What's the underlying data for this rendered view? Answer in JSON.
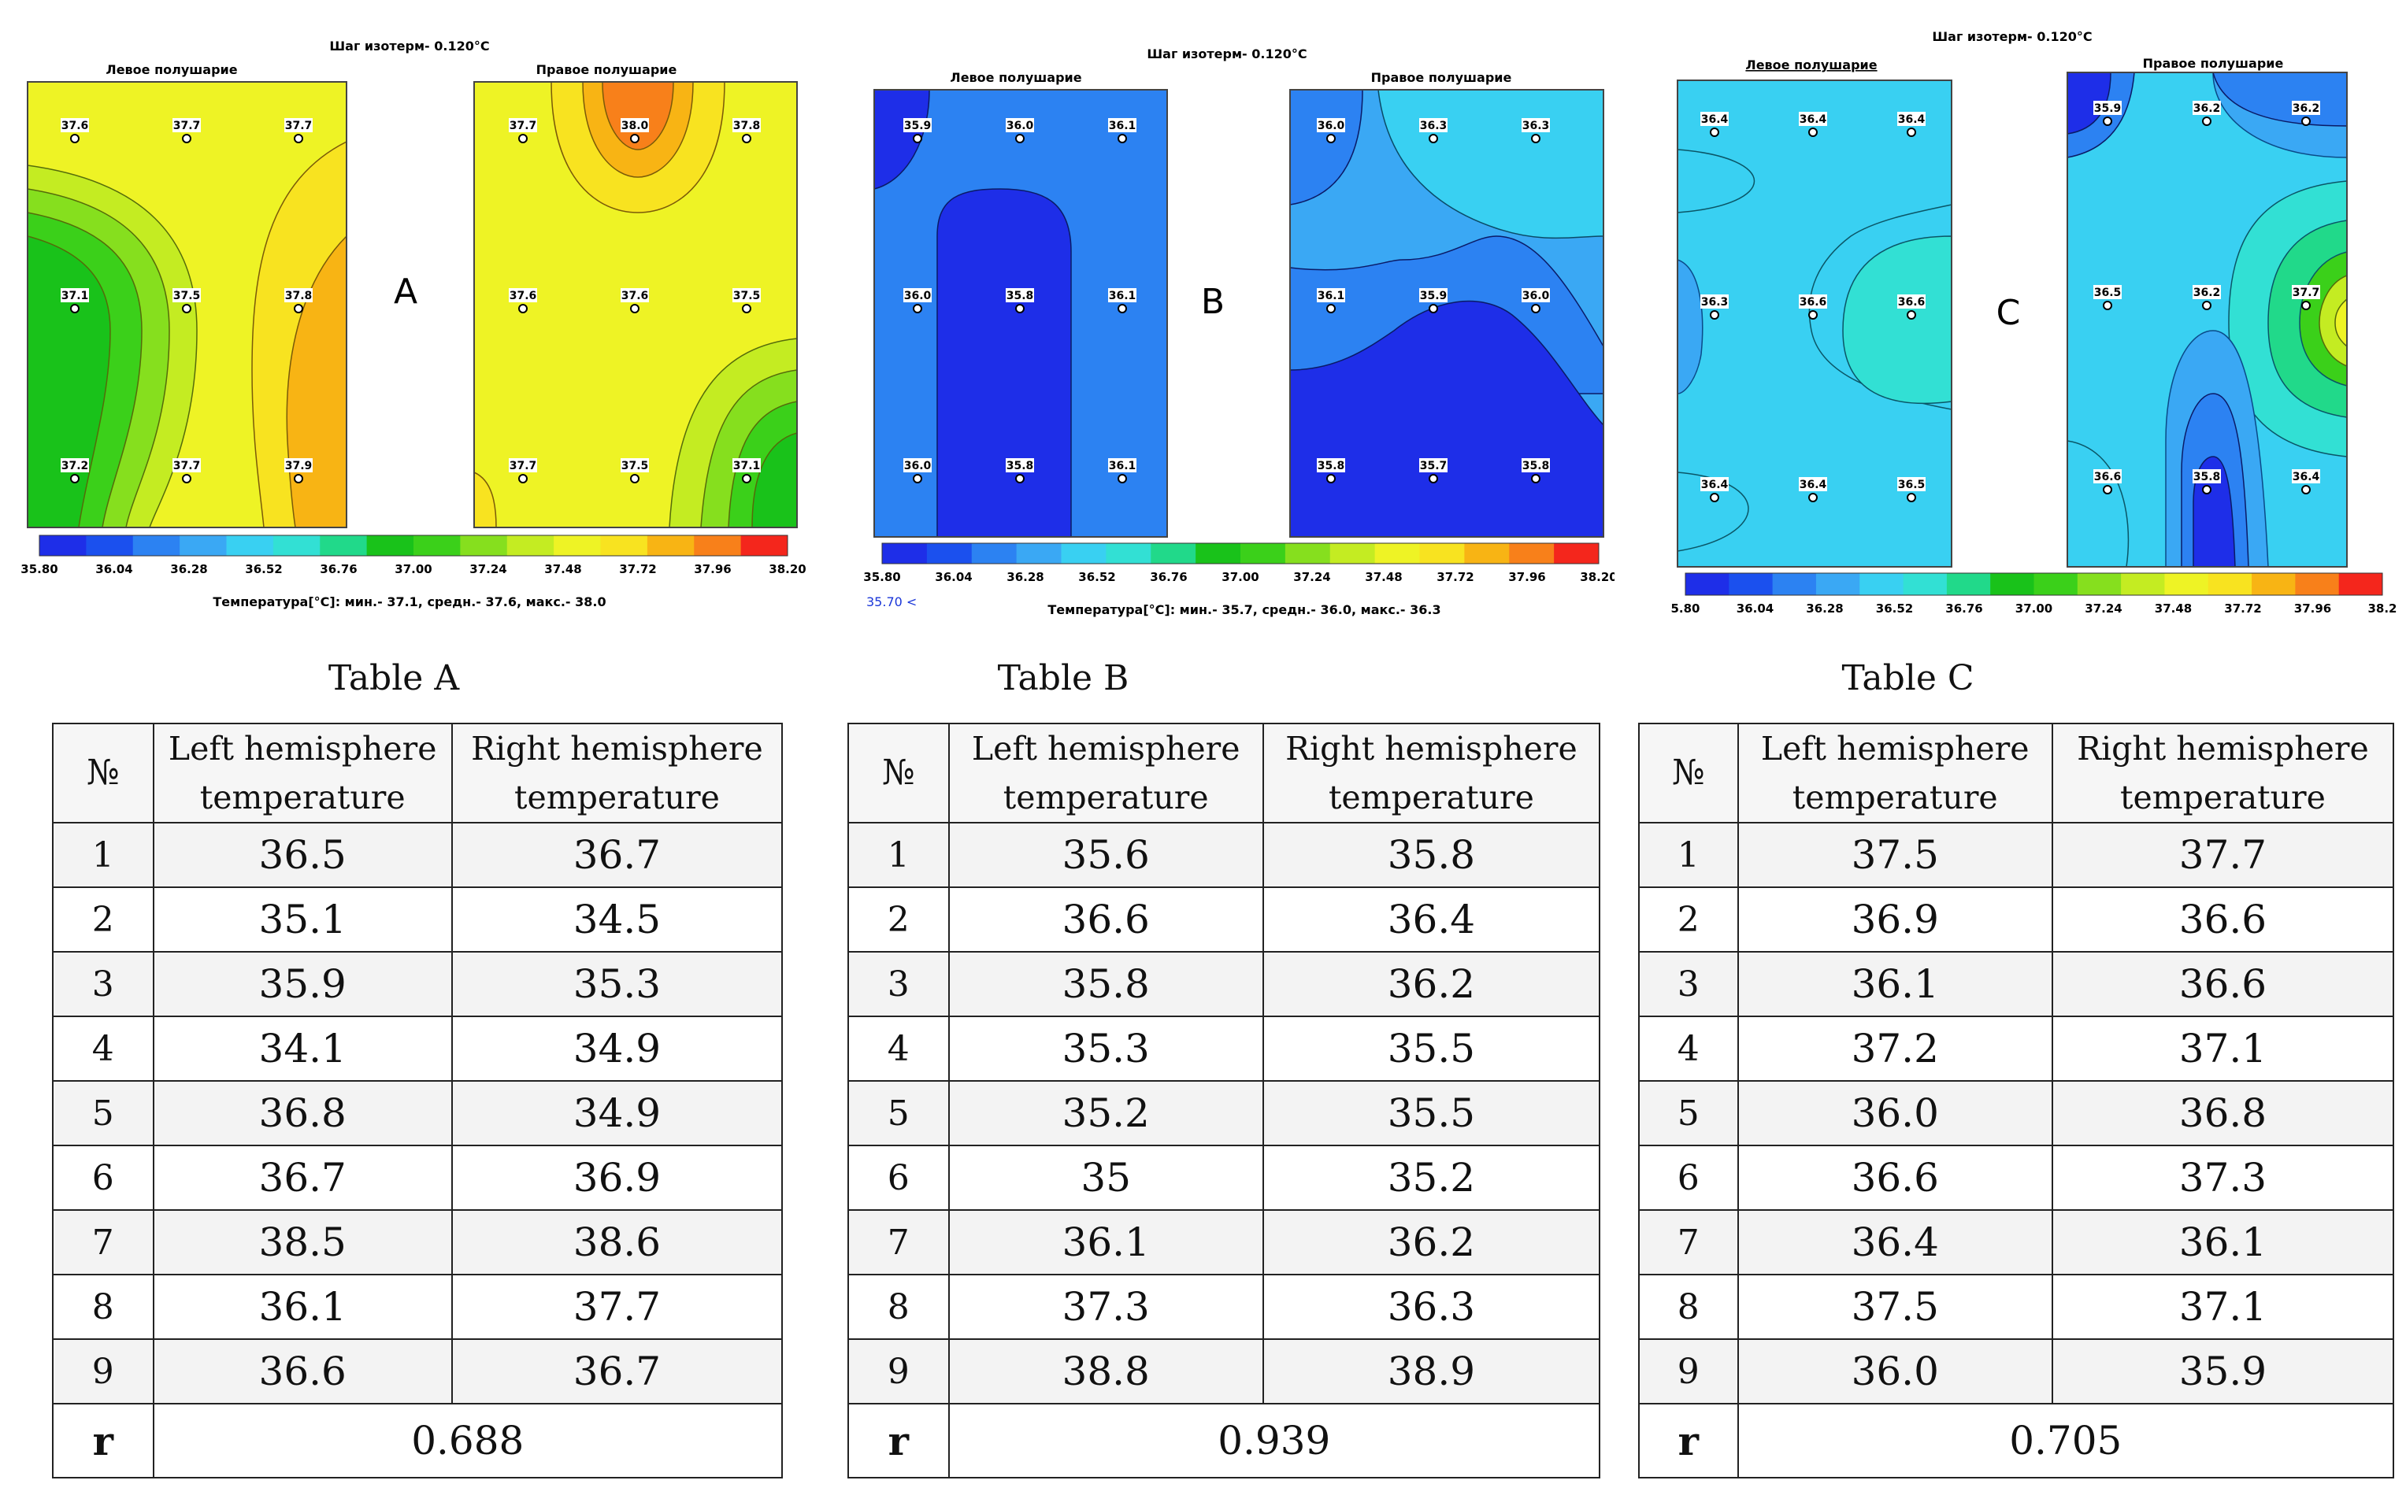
{
  "palette": [
    "#1e2ee8",
    "#1b50ee",
    "#2c82f2",
    "#3aa8f4",
    "#39d0f2",
    "#32e0d4",
    "#21d98a",
    "#19c21a",
    "#3bd01a",
    "#86df1e",
    "#c4ec22",
    "#eef325",
    "#f8e320",
    "#f8b414",
    "#f8801a",
    "#f4261c"
  ],
  "panels": [
    {
      "id": "A",
      "title": "Шаг изотерм- 0.120°C",
      "left_title": "Левое полушарие",
      "right_title": "Правое полушарие",
      "letter": "A",
      "left_points": [
        [
          "37.6",
          "37.7",
          "37.7"
        ],
        [
          "37.1",
          "37.5",
          "37.8"
        ],
        [
          "37.2",
          "37.7",
          "37.9"
        ]
      ],
      "right_points": [
        [
          "37.7",
          "38.0",
          "37.8"
        ],
        [
          "37.6",
          "37.6",
          "37.5"
        ],
        [
          "37.7",
          "37.5",
          "37.1"
        ]
      ],
      "scale_ticks": [
        "35.80",
        "36.04",
        "36.28",
        "36.52",
        "36.76",
        "37.00",
        "37.24",
        "37.48",
        "37.72",
        "37.96",
        "38.20"
      ],
      "footer": "Температура[°C]: мин.- 37.1, средн.- 37.6, макс.- 38.0",
      "extra_note": "",
      "table_caption": "Table A",
      "table": {
        "col_no": "№",
        "col_left": "Left hemisphere temperature",
        "col_right": "Right hemisphere temperature",
        "rows": [
          [
            "1",
            "36.5",
            "36.7"
          ],
          [
            "2",
            "35.1",
            "34.5"
          ],
          [
            "3",
            "35.9",
            "35.3"
          ],
          [
            "4",
            "34.1",
            "34.9"
          ],
          [
            "5",
            "36.8",
            "34.9"
          ],
          [
            "6",
            "36.7",
            "36.9"
          ],
          [
            "7",
            "38.5",
            "38.6"
          ],
          [
            "8",
            "36.1",
            "37.7"
          ],
          [
            "9",
            "36.6",
            "36.7"
          ]
        ],
        "r_label": "r",
        "r_value": "0.688"
      }
    },
    {
      "id": "B",
      "title": "Шаг изотерм- 0.120°C",
      "left_title": "Левое полушарие",
      "right_title": "Правое полушарие",
      "letter": "B",
      "left_points": [
        [
          "35.9",
          "36.0",
          "36.1"
        ],
        [
          "36.0",
          "35.8",
          "36.1"
        ],
        [
          "36.0",
          "35.8",
          "36.1"
        ]
      ],
      "right_points": [
        [
          "36.0",
          "36.3",
          "36.3"
        ],
        [
          "36.1",
          "35.9",
          "36.0"
        ],
        [
          "35.8",
          "35.7",
          "35.8"
        ]
      ],
      "scale_ticks": [
        "35.80",
        "36.04",
        "36.28",
        "36.52",
        "36.76",
        "37.00",
        "37.24",
        "37.48",
        "37.72",
        "37.96",
        "38.20"
      ],
      "footer": "Температура[°C]: мин.- 35.7, средн.- 36.0, макс.- 36.3",
      "extra_note": "35.70 <",
      "table_caption": "Table B",
      "table": {
        "col_no": "№",
        "col_left": "Left hemisphere temperature",
        "col_right": "Right hemisphere temperature",
        "rows": [
          [
            "1",
            "35.6",
            "35.8"
          ],
          [
            "2",
            "36.6",
            "36.4"
          ],
          [
            "3",
            "35.8",
            "36.2"
          ],
          [
            "4",
            "35.3",
            "35.5"
          ],
          [
            "5",
            "35.2",
            "35.5"
          ],
          [
            "6",
            "35",
            "35.2"
          ],
          [
            "7",
            "36.1",
            "36.2"
          ],
          [
            "8",
            "37.3",
            "36.3"
          ],
          [
            "9",
            "38.8",
            "38.9"
          ]
        ],
        "r_label": "r",
        "r_value": "0.939"
      }
    },
    {
      "id": "C",
      "title": "Шаг изотерм- 0.120°C",
      "left_title": "Левое полушарие",
      "right_title": "Правое полушарие",
      "letter": "C",
      "left_points": [
        [
          "36.4",
          "36.4",
          "36.4"
        ],
        [
          "36.3",
          "36.6",
          "36.6"
        ],
        [
          "36.4",
          "36.4",
          "36.5"
        ]
      ],
      "right_points": [
        [
          "35.9",
          "36.2",
          "36.2"
        ],
        [
          "36.5",
          "36.2",
          "37.7"
        ],
        [
          "36.6",
          "35.8",
          "36.4"
        ]
      ],
      "scale_ticks": [
        "5.80",
        "36.04",
        "36.28",
        "36.52",
        "36.76",
        "37.00",
        "37.24",
        "37.48",
        "37.72",
        "37.96",
        "38.2"
      ],
      "footer": "",
      "extra_note": "",
      "table_caption": "Table C",
      "table": {
        "col_no": "№",
        "col_left": "Left hemisphere temperature",
        "col_right": "Right hemisphere temperature",
        "rows": [
          [
            "1",
            "37.5",
            "37.7"
          ],
          [
            "2",
            "36.9",
            "36.6"
          ],
          [
            "3",
            "36.1",
            "36.6"
          ],
          [
            "4",
            "37.2",
            "37.1"
          ],
          [
            "5",
            "36.0",
            "36.8"
          ],
          [
            "6",
            "36.6",
            "37.3"
          ],
          [
            "7",
            "36.4",
            "36.1"
          ],
          [
            "8",
            "37.5",
            "37.1"
          ],
          [
            "9",
            "36.0",
            "35.9"
          ]
        ],
        "r_label": "r",
        "r_value": "0.705"
      }
    }
  ]
}
